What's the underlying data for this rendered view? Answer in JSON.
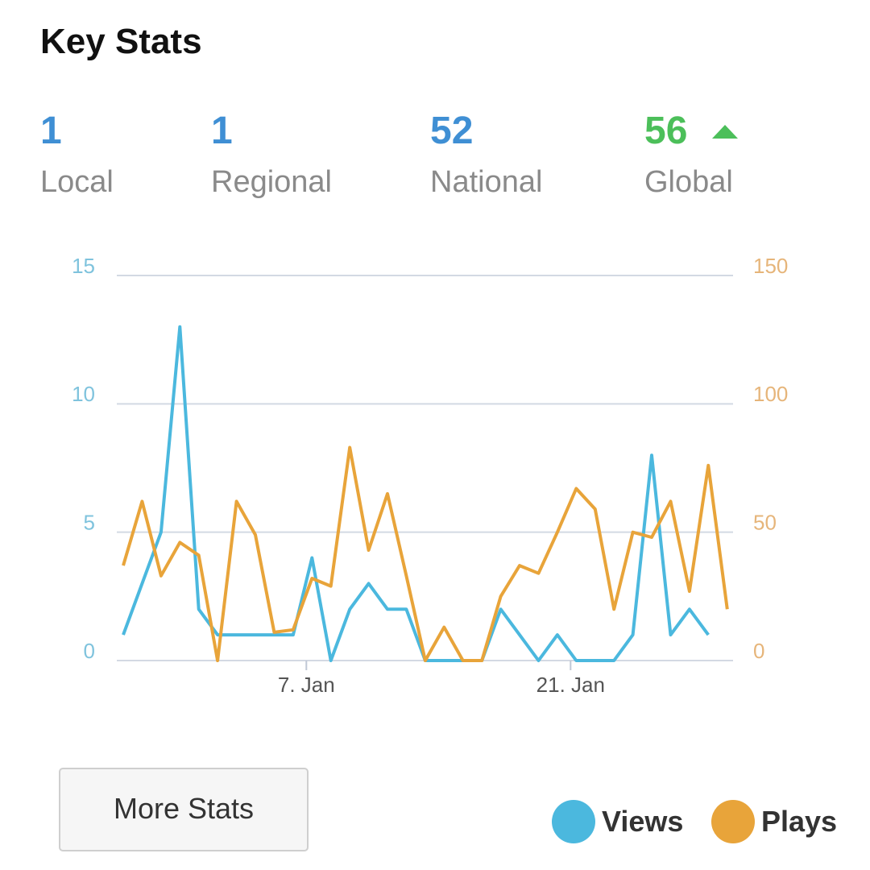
{
  "header": {
    "title": "Key Stats"
  },
  "stats": [
    {
      "value": 1,
      "label": "Local"
    },
    {
      "value": 1,
      "label": "Regional"
    },
    {
      "value": 52,
      "label": "National"
    },
    {
      "value": 56,
      "label": "Global"
    }
  ],
  "chart_data": {
    "type": "line",
    "categories": [
      null,
      null,
      null,
      null,
      null,
      null,
      null,
      null,
      null,
      null,
      "7. Jan",
      null,
      null,
      null,
      null,
      null,
      null,
      null,
      null,
      null,
      null,
      null,
      null,
      null,
      "21. Jan",
      null,
      null,
      null,
      null,
      null,
      null,
      null,
      null
    ],
    "series": [
      {
        "name": "Views",
        "color": "#4bb8de",
        "axis": "y",
        "values": [
          1,
          3,
          5,
          13,
          2,
          1,
          1,
          1,
          1,
          1,
          4,
          0,
          2,
          3,
          2,
          2,
          0,
          0,
          0,
          0,
          2,
          1,
          0,
          1,
          0,
          0,
          0,
          1,
          8,
          1,
          2,
          1,
          null
        ]
      },
      {
        "name": "Plays",
        "color": "#e8a43a",
        "axis": "y2",
        "values": [
          37,
          62,
          33,
          46,
          41,
          0,
          62,
          49,
          11,
          12,
          32,
          29,
          83,
          43,
          65,
          33,
          0,
          13,
          0,
          0,
          25,
          37,
          34,
          50,
          67,
          59,
          20,
          50,
          48,
          62,
          27,
          76,
          20
        ]
      }
    ],
    "ylim": [
      0,
      15
    ],
    "yticks": [
      0,
      5,
      10,
      15
    ],
    "y2lim": [
      0,
      150
    ],
    "y2ticks": [
      0,
      50,
      100,
      150
    ],
    "grid": true
  },
  "button": {
    "label": "More Stats"
  }
}
